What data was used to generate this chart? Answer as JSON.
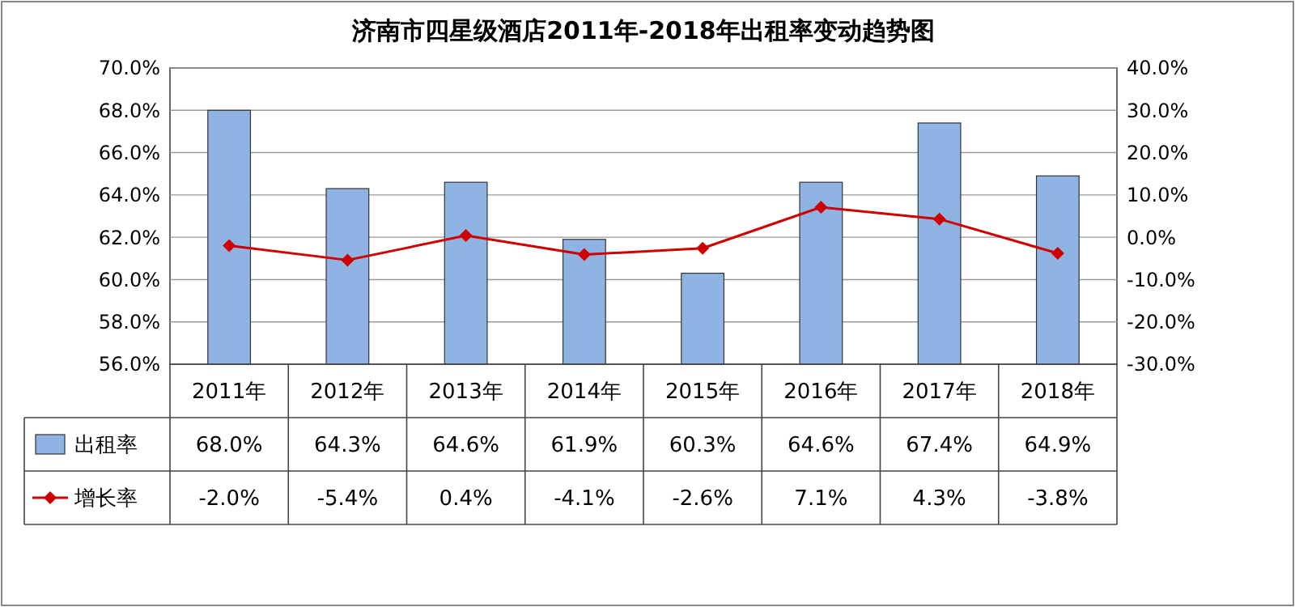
{
  "chart_data": {
    "type": "bar",
    "title": "济南市四星级酒店2011年-2018年出租率变动趋势图",
    "categories": [
      "2011年",
      "2012年",
      "2013年",
      "2014年",
      "2015年",
      "2016年",
      "2017年",
      "2018年"
    ],
    "series": [
      {
        "name": "出租率",
        "color": "#8fb4e3",
        "values": [
          68.0,
          64.3,
          64.6,
          61.9,
          60.3,
          64.6,
          67.4,
          64.9
        ],
        "value_labels": [
          "68.0%",
          "64.3%",
          "64.6%",
          "61.9%",
          "60.3%",
          "64.6%",
          "67.4%",
          "64.9%"
        ]
      },
      {
        "name": "增长率",
        "type": "line",
        "axis": "y2",
        "color": "#d00000",
        "marker": "diamond",
        "values": [
          -2.0,
          -5.4,
          0.4,
          -4.1,
          -2.6,
          7.1,
          4.3,
          -3.8
        ],
        "value_labels": [
          "-2.0%",
          "-5.4%",
          "0.4%",
          "-4.1%",
          "-2.6%",
          "7.1%",
          "4.3%",
          "-3.8%"
        ]
      }
    ],
    "ylim": [
      56,
      70
    ],
    "yticks": [
      {
        "value": 56,
        "label": "56.0%"
      },
      {
        "value": 58,
        "label": "58.0%"
      },
      {
        "value": 60,
        "label": "60.0%"
      },
      {
        "value": 62,
        "label": "62.0%"
      },
      {
        "value": 64,
        "label": "64.0%"
      },
      {
        "value": 66,
        "label": "66.0%"
      },
      {
        "value": 68,
        "label": "68.0%"
      },
      {
        "value": 70,
        "label": "70.0%"
      }
    ],
    "y2lim": [
      -30,
      40
    ],
    "y2ticks": [
      {
        "value": -30,
        "label": "-30.0%"
      },
      {
        "value": -20,
        "label": "-20.0%"
      },
      {
        "value": -10,
        "label": "-10.0%"
      },
      {
        "value": 0,
        "label": "0.0%"
      },
      {
        "value": 10,
        "label": "10.0%"
      },
      {
        "value": 20,
        "label": "20.0%"
      },
      {
        "value": 30,
        "label": "30.0%"
      },
      {
        "value": 40,
        "label": "40.0%"
      }
    ],
    "grid": "y",
    "legend": "bottom"
  }
}
